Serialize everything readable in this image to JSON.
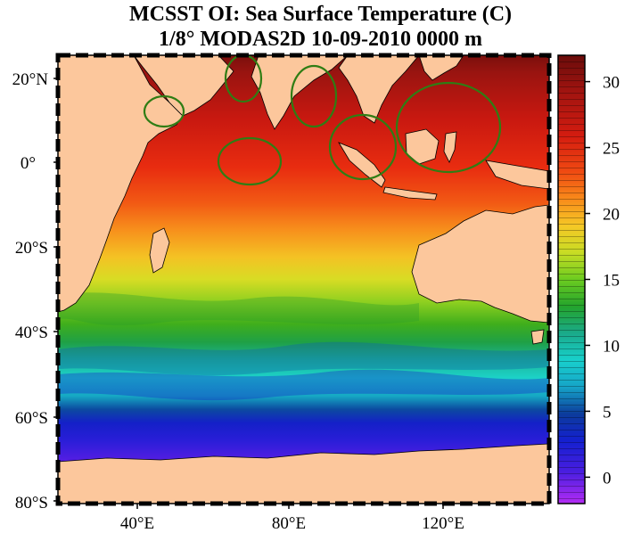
{
  "header": {
    "title_line1": "MCSST OI:  Sea Surface Temperature (C)",
    "title_line2": "1/8° MODAS2D 10-09-2010 0000 m"
  },
  "map": {
    "lat_labels": [
      "20°N",
      "0°",
      "20°S",
      "40°S",
      "60°S",
      "80°S"
    ],
    "lon_labels": [
      "40°E",
      "80°E",
      "120°E"
    ],
    "colors": {
      "land": "#fcc79c",
      "ocean_warm": "#c81810",
      "ocean_cold": "#7a1ef0",
      "marker_circle": "#2f7d14"
    },
    "highlight_circles": 6
  },
  "colorbar": {
    "ticks": [
      "30",
      "25",
      "20",
      "15",
      "10",
      "5",
      "0"
    ],
    "range": [
      -2,
      32
    ]
  }
}
